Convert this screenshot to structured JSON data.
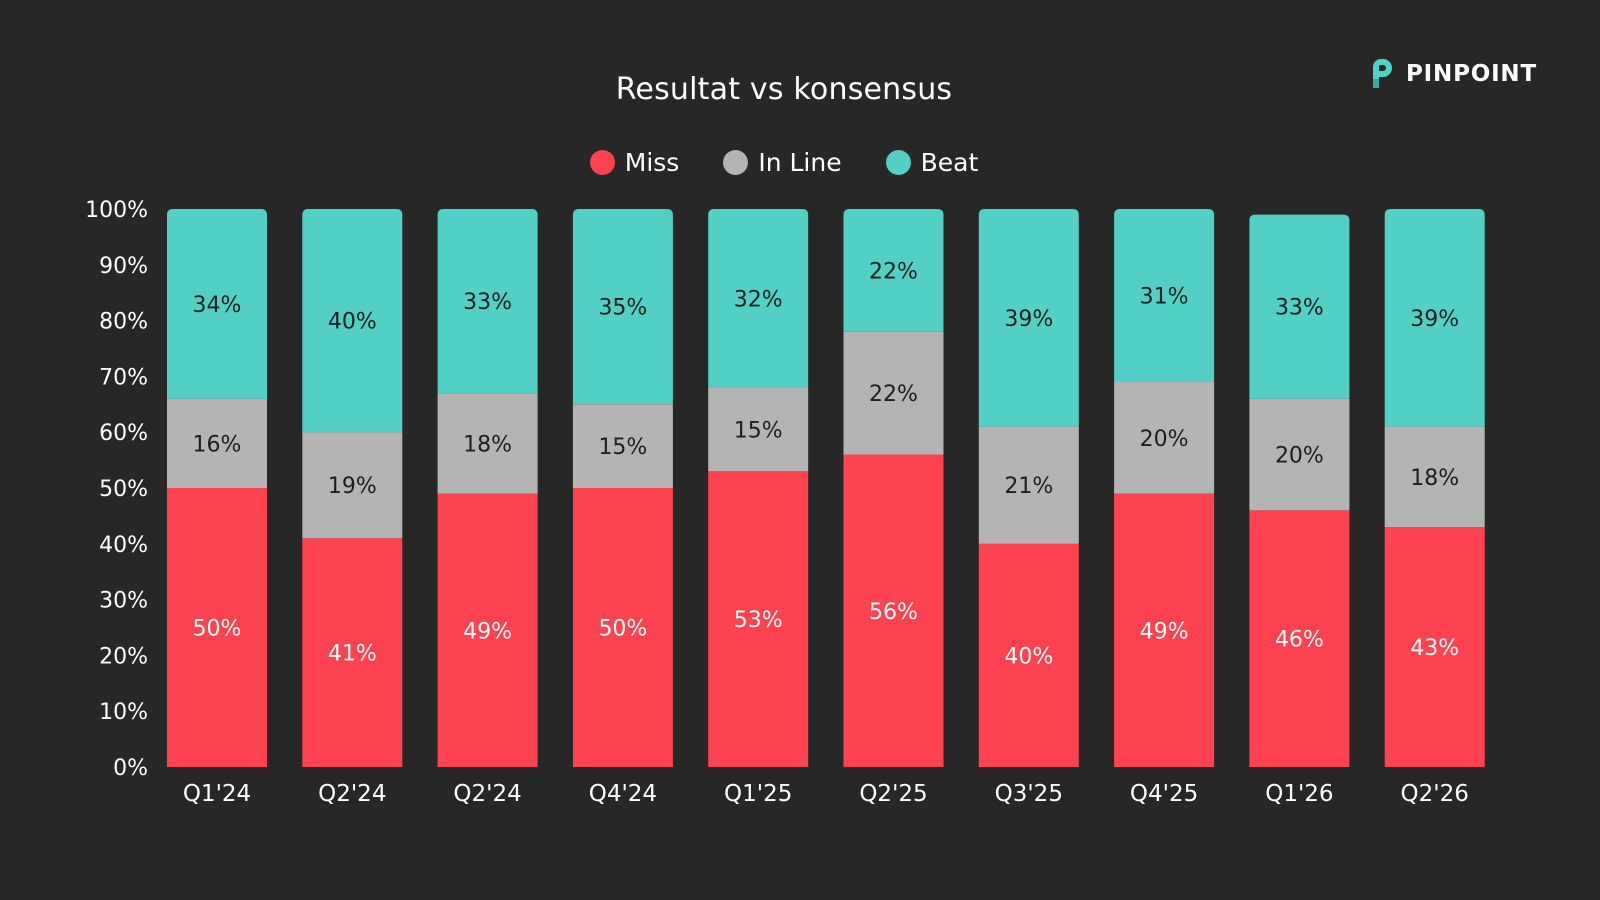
{
  "brand": {
    "name": "PINPOINT",
    "icon": "pinpoint-logo-icon",
    "accent": "#4fd1c5"
  },
  "chart_data": {
    "type": "bar",
    "stacked": true,
    "title": "Resultat vs konsensus",
    "xlabel": "",
    "ylabel": "",
    "ylim": [
      0,
      100
    ],
    "yticks": [
      "0%",
      "10%",
      "20%",
      "30%",
      "40%",
      "50%",
      "60%",
      "70%",
      "80%",
      "90%",
      "100%"
    ],
    "legend_position": "top-center",
    "grid": false,
    "categories": [
      "Q1'24",
      "Q2'24",
      "Q2'24",
      "Q4'24",
      "Q1'25",
      "Q2'25",
      "Q3'25",
      "Q4'25",
      "Q1'26",
      "Q2'26"
    ],
    "series": [
      {
        "name": "Miss",
        "color": "#ff424f",
        "label_color": "#ffffff",
        "values": [
          50,
          41,
          49,
          50,
          53,
          56,
          40,
          49,
          46,
          43
        ]
      },
      {
        "name": "In Line",
        "color": "#b4b4b4",
        "label_color": "#1e1e1e",
        "values": [
          16,
          19,
          18,
          15,
          15,
          22,
          21,
          20,
          20,
          18
        ]
      },
      {
        "name": "Beat",
        "color": "#52d0c6",
        "label_color": "#1e1e1e",
        "values": [
          34,
          40,
          33,
          35,
          32,
          22,
          39,
          31,
          33,
          39
        ]
      }
    ]
  }
}
